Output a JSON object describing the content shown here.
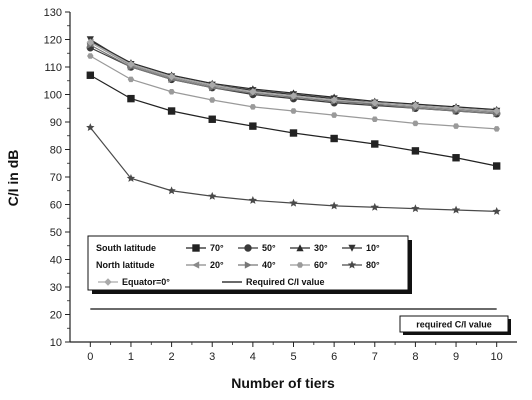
{
  "chart_data": {
    "type": "line",
    "xlabel": "Number of tiers",
    "ylabel": "C/I in dB",
    "xlim": [
      -0.5,
      10.5
    ],
    "ylim": [
      10,
      130
    ],
    "x_ticks": [
      0,
      1,
      2,
      3,
      4,
      5,
      6,
      7,
      8,
      9,
      10
    ],
    "y_ticks": [
      10,
      20,
      30,
      40,
      50,
      60,
      70,
      80,
      90,
      100,
      110,
      120,
      130
    ],
    "x": [
      0,
      1,
      2,
      3,
      4,
      5,
      6,
      7,
      8,
      9,
      10
    ],
    "legend": {
      "position": "lower-left",
      "row_labels": [
        "South latitude",
        "North latitude"
      ]
    },
    "series": [
      {
        "name": "70°",
        "group": "South latitude",
        "marker": "square",
        "color": "#222222",
        "values": [
          107,
          98.5,
          94,
          91,
          88.5,
          86,
          84,
          82,
          79.5,
          77,
          74
        ]
      },
      {
        "name": "50°",
        "group": "South latitude",
        "marker": "circle",
        "color": "#3a3a3a",
        "values": [
          117,
          110,
          105.5,
          102.5,
          100,
          98.5,
          97,
          96,
          95,
          94,
          93
        ]
      },
      {
        "name": "30°",
        "group": "South latitude",
        "marker": "triangle-up",
        "color": "#2a2a2a",
        "values": [
          119.5,
          111.5,
          107,
          104,
          102,
          100.5,
          99,
          97.5,
          96.5,
          95.5,
          94.5
        ]
      },
      {
        "name": "10°",
        "group": "South latitude",
        "marker": "triangle-down",
        "color": "#333333",
        "values": [
          120,
          111,
          106.5,
          103.5,
          101.5,
          100,
          98.5,
          97,
          96,
          95,
          94
        ]
      },
      {
        "name": "20°",
        "group": "North latitude",
        "marker": "triangle-left",
        "color": "#8a8a8a",
        "values": [
          119,
          110.5,
          106,
          103,
          101,
          99.5,
          98,
          96.5,
          95.5,
          94.5,
          93.5
        ]
      },
      {
        "name": "40°",
        "group": "North latitude",
        "marker": "triangle-right",
        "color": "#777777",
        "values": [
          118,
          110,
          105.5,
          102.5,
          100.5,
          99,
          97.5,
          96.5,
          95,
          94,
          93
        ]
      },
      {
        "name": "60°",
        "group": "North latitude",
        "marker": "hexagon",
        "color": "#9a9a9a",
        "values": [
          114,
          105.5,
          101,
          98,
          95.5,
          94,
          92.5,
          91,
          89.5,
          88.5,
          87.5
        ]
      },
      {
        "name": "80°",
        "group": "North latitude",
        "marker": "star",
        "color": "#4a4a4a",
        "values": [
          88,
          69.5,
          65,
          63,
          61.5,
          60.5,
          59.5,
          59,
          58.5,
          58,
          57.5
        ]
      },
      {
        "name": "Equator=0°",
        "group": "",
        "marker": "diamond",
        "color": "#aaaaaa",
        "values": [
          119,
          111,
          106.5,
          103.5,
          101,
          99.5,
          98,
          97,
          96,
          95,
          94
        ]
      }
    ],
    "reference_line": {
      "name": "Required C/I value",
      "value": 22,
      "color": "#111111"
    },
    "annotation": "required C/I value"
  }
}
